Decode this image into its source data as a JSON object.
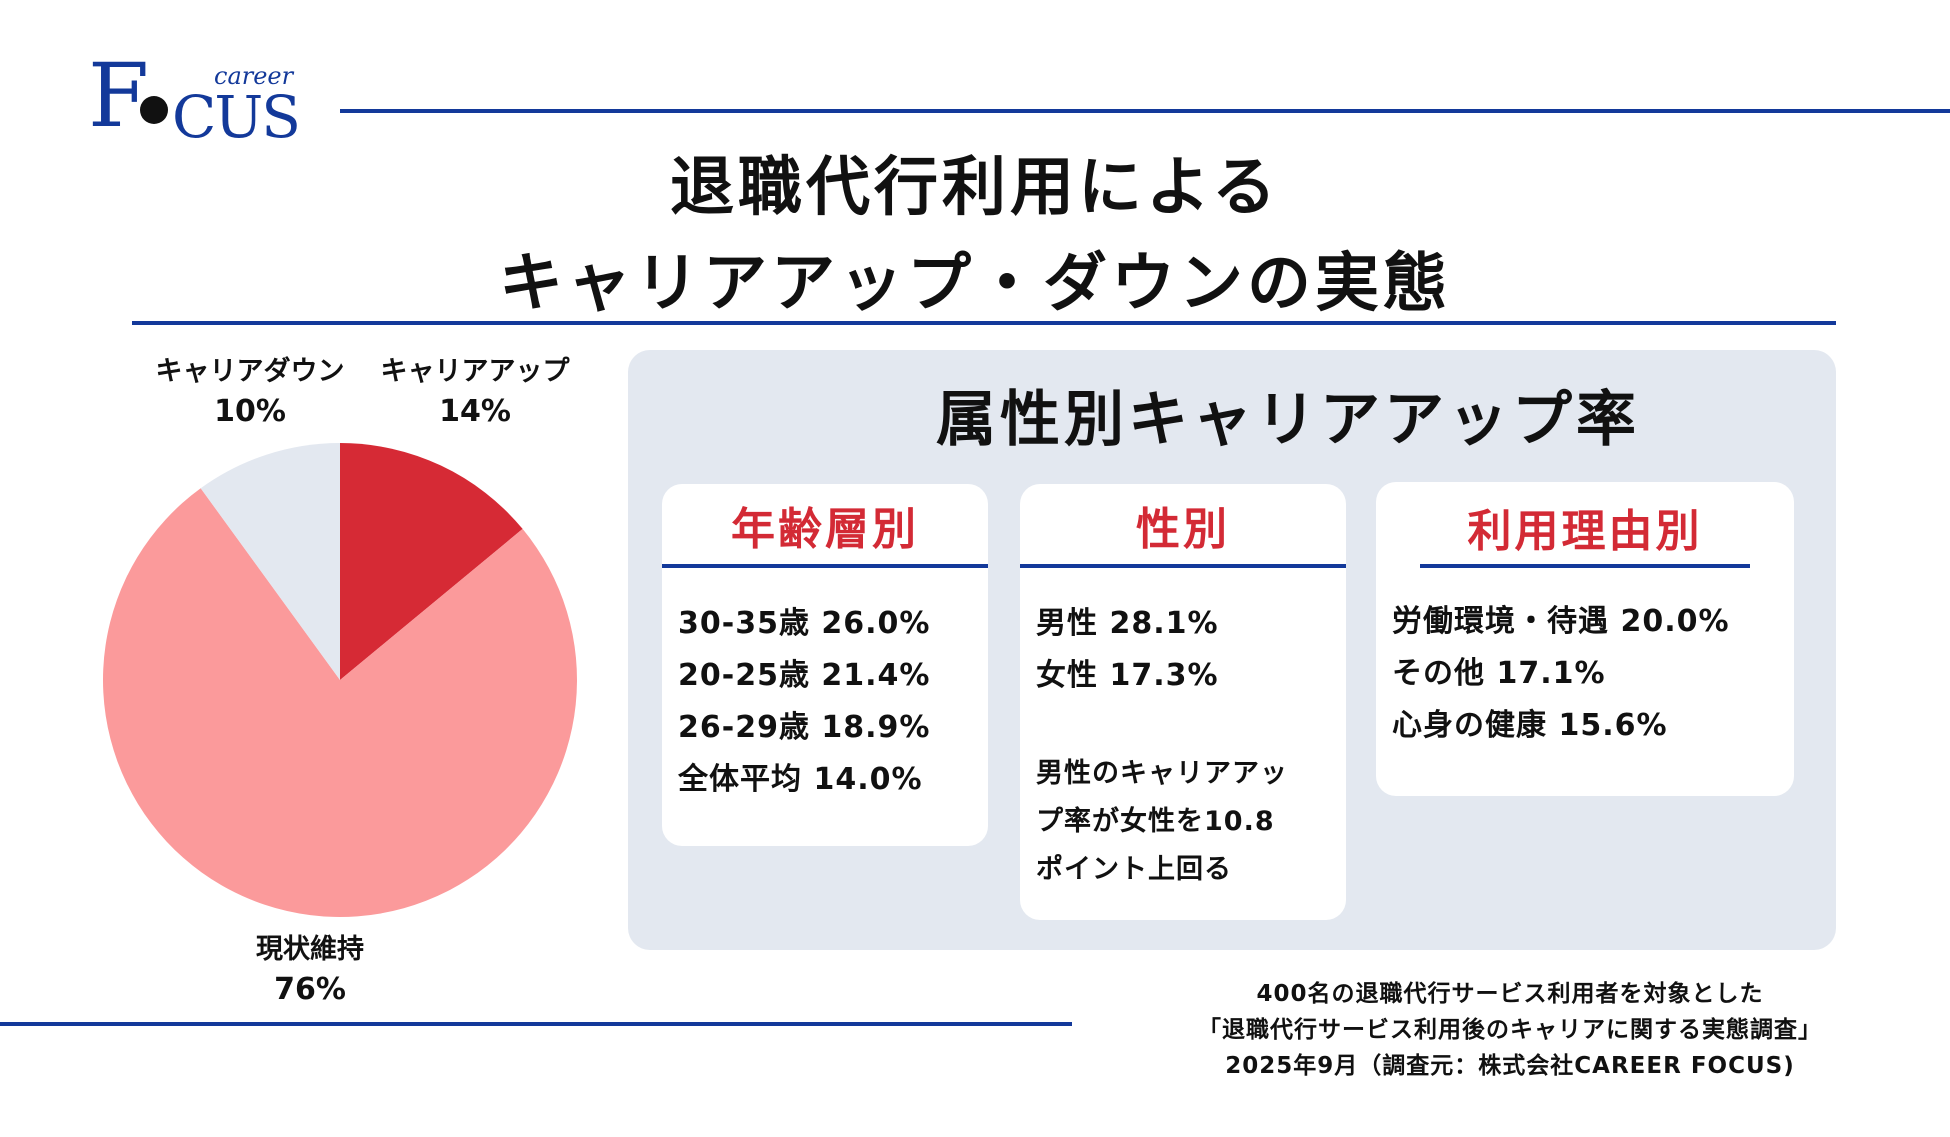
{
  "logo": {
    "f": "F",
    "cus": "CUS",
    "small": "career"
  },
  "title": {
    "line1": "退職代行利用による",
    "line2": "キャリアアップ・ダウンの実態"
  },
  "colors": {
    "brand_blue": "#13399a",
    "accent_red": "#d32a35",
    "panel_bg": "#e3e8f0"
  },
  "chart_data": {
    "type": "pie",
    "slices": [
      {
        "label": "キャリアアップ",
        "value": 14,
        "value_label": "14%",
        "color": "#d62a35"
      },
      {
        "label": "現状維持",
        "value": 76,
        "value_label": "76%",
        "color": "#fb9a9b"
      },
      {
        "label": "キャリアダウン",
        "value": 10,
        "value_label": "10%",
        "color": "#e3e8f0"
      }
    ]
  },
  "panel": {
    "title": "属性別キャリアアップ率",
    "cards": [
      {
        "title": "年齢層別",
        "lines": [
          "30-35歳 26.0%",
          "20-25歳 21.4%",
          "26-29歳 18.9%",
          "全体平均 14.0%"
        ]
      },
      {
        "title": "性別",
        "lines": [
          "男性 28.1%",
          "女性 17.3%"
        ],
        "note": [
          "男性のキャリアアッ",
          "プ率が女性を10.8",
          "ポイント上回る"
        ]
      },
      {
        "title": "利用理由別",
        "lines": [
          "労働環境・待遇 20.0%",
          "その他 17.1%",
          "心身の健康 15.6%"
        ]
      }
    ]
  },
  "source": {
    "line1": "400名の退職代行サービス利用者を対象とした",
    "line2": "「退職代行サービス利用後のキャリアに関する実態調査」",
    "line3": "2025年9月（調査元：株式会社CAREER FOCUS)"
  }
}
